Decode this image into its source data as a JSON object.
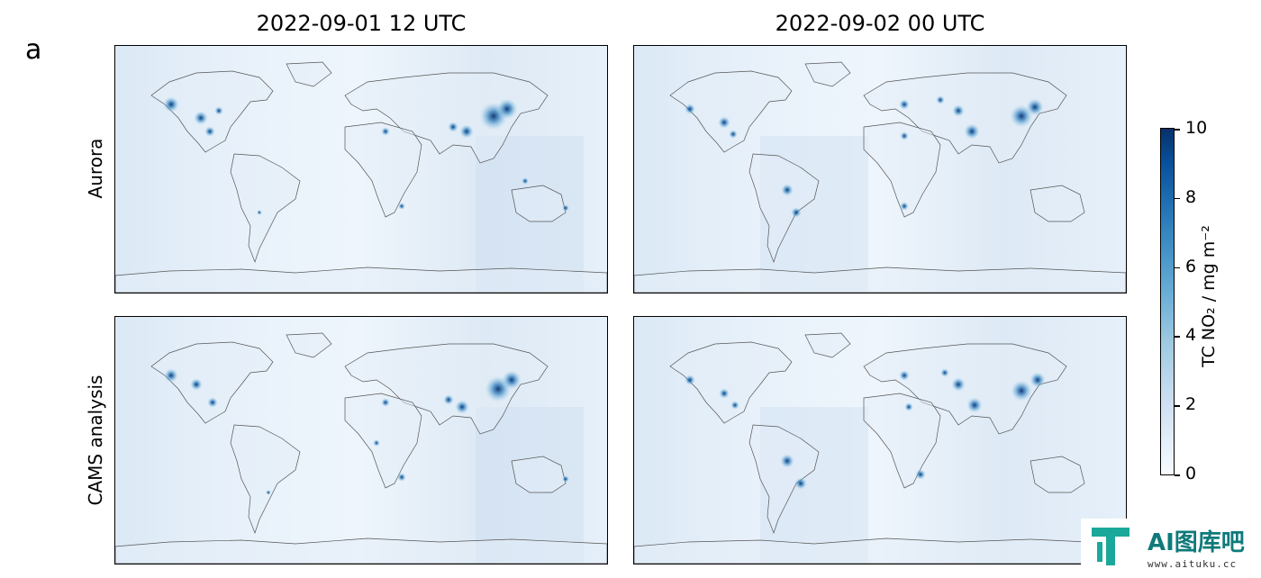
{
  "figure": {
    "panel_letter": "a",
    "column_titles": [
      "2022-09-01 12 UTC",
      "2022-09-02 00 UTC"
    ],
    "row_labels": [
      "Aurora",
      "CAMS analysis"
    ]
  },
  "colorbar": {
    "label": "TC NO₂ / mg m⁻²",
    "ticks": [
      "0",
      "2",
      "4",
      "6",
      "8",
      "10"
    ],
    "range": [
      0,
      10
    ],
    "colormap": "Blues"
  },
  "watermark": {
    "title": "AI图库吧",
    "url": "www.aituku.cc"
  },
  "chart_data": {
    "type": "heatmap",
    "title": "",
    "variable": "TC NO₂",
    "units": "mg m⁻²",
    "vmin": 0,
    "vmax": 10,
    "colormap": "Blues",
    "columns": [
      "2022-09-01 12 UTC",
      "2022-09-02 00 UTC"
    ],
    "rows": [
      "Aurora",
      "CAMS analysis"
    ],
    "panels": [
      {
        "row": "Aurora",
        "time": "2022-09-01 12 UTC"
      },
      {
        "row": "Aurora",
        "time": "2022-09-02 00 UTC"
      },
      {
        "row": "CAMS analysis",
        "time": "2022-09-01 12 UTC"
      },
      {
        "row": "CAMS analysis",
        "time": "2022-09-02 00 UTC"
      }
    ]
  }
}
